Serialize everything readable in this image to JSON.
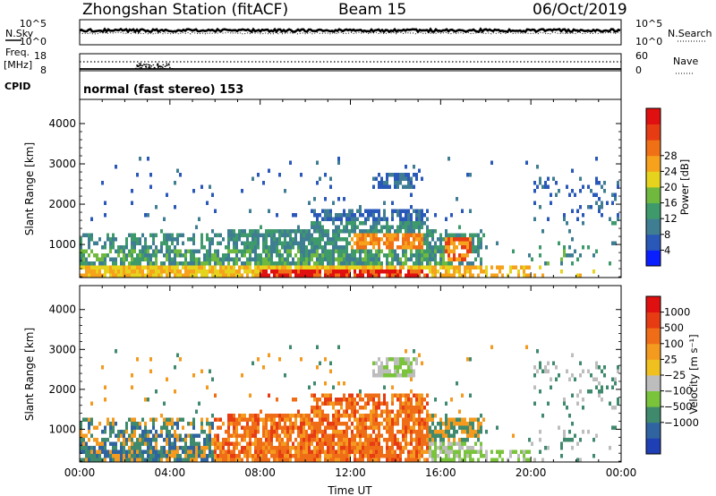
{
  "header": {
    "station": "Zhongshan Station (fitACF)",
    "beam": "Beam 15",
    "date": "06/Oct/2019"
  },
  "noise_panel": {
    "left_label": "N.Sky",
    "right_label": "N.Search",
    "left_ticks": [
      "10^5",
      "10^0"
    ],
    "right_ticks": [
      "10^5",
      "10^0"
    ]
  },
  "freq_panel": {
    "left_label": "Freq.",
    "left_unit": "[MHz]",
    "right_label": "Nave",
    "left_ticks": [
      "18",
      "8"
    ],
    "right_ticks": [
      "60",
      "0"
    ]
  },
  "cpid_panel": {
    "label": "CPID",
    "text": "normal (fast stereo) 153"
  },
  "chart_data": [
    {
      "type": "heatmap",
      "title": "",
      "ylabel": "Slant Range [km]",
      "xlabel": "",
      "ylim": [
        180,
        4600
      ],
      "y_ticks": [
        "1000",
        "2000",
        "3000",
        "4000"
      ],
      "x_ticks": [],
      "colorbar": {
        "label": "Power [dB]",
        "ticks": [
          "4",
          "8",
          "12",
          "16",
          "20",
          "24",
          "28"
        ],
        "range": [
          0,
          30
        ],
        "colors": [
          "#0a1fff",
          "#2a58b8",
          "#3f7e92",
          "#3e9a6a",
          "#6fb93f",
          "#e6d31d",
          "#f6a21c",
          "#f07016",
          "#e63b13",
          "#e01010"
        ]
      }
    },
    {
      "type": "heatmap",
      "title": "",
      "ylabel": "Slant Range [km]",
      "xlabel": "Time UT",
      "ylim": [
        180,
        4600
      ],
      "y_ticks": [
        "1000",
        "2000",
        "3000",
        "4000"
      ],
      "x_ticks": [
        "00:00",
        "04:00",
        "08:00",
        "12:00",
        "16:00",
        "20:00",
        "00:00"
      ],
      "colorbar": {
        "label": "Velocity [m s⁻¹]",
        "ticks": [
          "1000",
          "500",
          "100",
          "25",
          "−25",
          "−100",
          "−500",
          "−1000"
        ],
        "colors": [
          "#1f3fb5",
          "#2f64a0",
          "#3f8a6d",
          "#7ac43c",
          "#bdbdbd",
          "#f0c020",
          "#f39a1f",
          "#f06d17",
          "#e63b13",
          "#e01010"
        ]
      }
    }
  ]
}
